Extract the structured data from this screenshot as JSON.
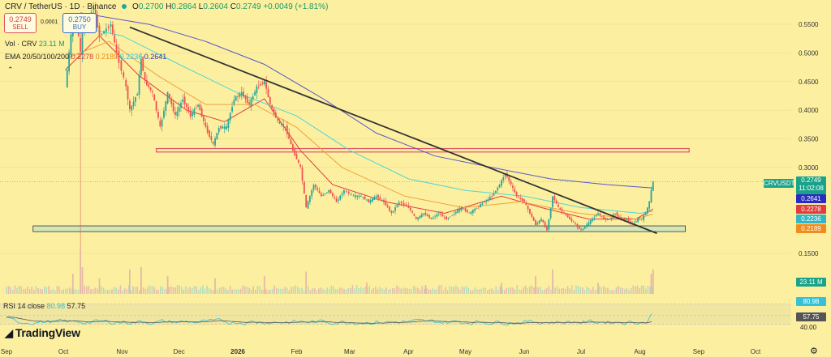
{
  "header": {
    "symbol": "CRV / TetherUS · 1D · Binance",
    "ohlc_open_label": "O",
    "ohlc_open": "0.2700",
    "ohlc_high_label": "H",
    "ohlc_high": "0.2864",
    "ohlc_low_label": "L",
    "ohlc_low": "0.2604",
    "ohlc_close_label": "C",
    "ohlc_close": "0.2749",
    "ohlc_change": "+0.0049 (+1.81%)",
    "sell_price": "0.2749",
    "sell_label": "SELL",
    "spread": "0.0001",
    "buy_price": "0.2750",
    "buy_label": "BUY",
    "vol_label": "Vol · CRV",
    "vol_value": "23.11 M",
    "ema_label": "EMA 20/50/100/200",
    "ema20": "0.2278",
    "ema50": "0.2189",
    "ema100": "0.2236",
    "ema200": "0.2641",
    "collapse_icon": "chevron-up-icon"
  },
  "right_axis": {
    "ticks": [
      "0.5500",
      "0.5000",
      "0.4500",
      "0.4000",
      "0.3500",
      "0.3000",
      "0.1500"
    ],
    "symbol_tag": "CRVUSDT",
    "price_tag": "0.2749",
    "countdown": "11:02:08",
    "ema200_tag": "0.2641",
    "ema20_tag": "0.2278",
    "ema100_tag": "0.2236",
    "ema50_tag": "0.2189",
    "vol_tag": "23.11 M",
    "rsi_tag": "80.98",
    "rsi_ma_tag": "57.75",
    "rsi_40": "40.00"
  },
  "rsi": {
    "label": "RSI 14 close",
    "value": "80.98",
    "ma": "57.75"
  },
  "time_axis": [
    "Sep",
    "Oct",
    "Nov",
    "Dec",
    "2026",
    "Feb",
    "Mar",
    "Apr",
    "May",
    "Jun",
    "Jul",
    "Aug",
    "Sep",
    "Oct"
  ],
  "brand": "TradingView",
  "brand_icon": "tradingview-logo-icon",
  "settings_icon": "gear-icon",
  "colors": {
    "background": "#fcf0a0",
    "up": "#26a69a",
    "down": "#ef5350",
    "ema20": "#e33c3c",
    "ema50": "#f0a040",
    "ema100": "#52d4d4",
    "ema200": "#5856c8",
    "trendline": "#333333",
    "resistance_zone": "#e0506a",
    "support_zone": "#5a9aa0"
  },
  "chart_data": {
    "type": "candlestick",
    "symbol": "CRVUSDT",
    "timeframe": "1D",
    "price_ylim": [
      0.13,
      0.57
    ],
    "last": {
      "open": 0.27,
      "high": 0.2864,
      "low": 0.2604,
      "close": 0.2749
    },
    "candle_path": [
      [
        "2025-10-02",
        0.44
      ],
      [
        "2025-10-06",
        0.56
      ],
      [
        "2025-10-09",
        0.53
      ],
      [
        "2025-10-10",
        0.5
      ],
      [
        "2025-10-11",
        0.54
      ],
      [
        "2025-10-17",
        0.58
      ],
      [
        "2025-10-20",
        0.53
      ],
      [
        "2025-10-26",
        0.55
      ],
      [
        "2025-10-29",
        0.5
      ],
      [
        "2025-11-03",
        0.44
      ],
      [
        "2025-11-05",
        0.4
      ],
      [
        "2025-11-09",
        0.43
      ],
      [
        "2025-11-11",
        0.49
      ],
      [
        "2025-11-13",
        0.45
      ],
      [
        "2025-11-17",
        0.43
      ],
      [
        "2025-11-21",
        0.37
      ],
      [
        "2025-11-25",
        0.43
      ],
      [
        "2025-11-29",
        0.39
      ],
      [
        "2025-12-03",
        0.42
      ],
      [
        "2025-12-07",
        0.39
      ],
      [
        "2025-12-11",
        0.41
      ],
      [
        "2025-12-15",
        0.37
      ],
      [
        "2025-12-19",
        0.34
      ],
      [
        "2025-12-22",
        0.37
      ],
      [
        "2025-12-26",
        0.37
      ],
      [
        "2025-12-30",
        0.42
      ],
      [
        "2026-01-03",
        0.43
      ],
      [
        "2026-01-07",
        0.41
      ],
      [
        "2026-01-11",
        0.44
      ],
      [
        "2026-01-15",
        0.45
      ],
      [
        "2026-01-18",
        0.41
      ],
      [
        "2026-01-22",
        0.38
      ],
      [
        "2026-01-26",
        0.37
      ],
      [
        "2026-01-30",
        0.33
      ],
      [
        "2026-02-03",
        0.3
      ],
      [
        "2026-02-06",
        0.23
      ],
      [
        "2026-02-10",
        0.27
      ],
      [
        "2026-02-14",
        0.25
      ],
      [
        "2026-02-18",
        0.26
      ],
      [
        "2026-02-22",
        0.24
      ],
      [
        "2026-02-26",
        0.26
      ],
      [
        "2026-03-03",
        0.25
      ],
      [
        "2026-03-07",
        0.25
      ],
      [
        "2026-03-11",
        0.24
      ],
      [
        "2026-03-15",
        0.25
      ],
      [
        "2026-03-19",
        0.24
      ],
      [
        "2026-03-23",
        0.22
      ],
      [
        "2026-03-27",
        0.24
      ],
      [
        "2026-04-01",
        0.23
      ],
      [
        "2026-04-05",
        0.21
      ],
      [
        "2026-04-09",
        0.22
      ],
      [
        "2026-04-13",
        0.21
      ],
      [
        "2026-04-17",
        0.22
      ],
      [
        "2026-04-21",
        0.21
      ],
      [
        "2026-04-25",
        0.22
      ],
      [
        "2026-04-29",
        0.23
      ],
      [
        "2026-05-03",
        0.22
      ],
      [
        "2026-05-07",
        0.23
      ],
      [
        "2026-05-11",
        0.24
      ],
      [
        "2026-05-15",
        0.25
      ],
      [
        "2026-05-19",
        0.27
      ],
      [
        "2026-05-22",
        0.29
      ],
      [
        "2026-05-25",
        0.27
      ],
      [
        "2026-05-28",
        0.25
      ],
      [
        "2026-06-01",
        0.24
      ],
      [
        "2026-06-04",
        0.22
      ],
      [
        "2026-06-07",
        0.2
      ],
      [
        "2026-06-10",
        0.21
      ],
      [
        "2026-06-13",
        0.19
      ],
      [
        "2026-06-16",
        0.25
      ],
      [
        "2026-06-19",
        0.23
      ],
      [
        "2026-06-22",
        0.22
      ],
      [
        "2026-06-25",
        0.21
      ],
      [
        "2026-06-28",
        0.2
      ],
      [
        "2026-07-01",
        0.19
      ],
      [
        "2026-07-04",
        0.2
      ],
      [
        "2026-07-07",
        0.21
      ],
      [
        "2026-07-10",
        0.22
      ],
      [
        "2026-07-13",
        0.21
      ],
      [
        "2026-07-16",
        0.21
      ],
      [
        "2026-07-19",
        0.22
      ],
      [
        "2026-07-22",
        0.21
      ],
      [
        "2026-07-25",
        0.21
      ],
      [
        "2026-07-28",
        0.2
      ],
      [
        "2026-07-31",
        0.21
      ],
      [
        "2026-08-02",
        0.21
      ],
      [
        "2026-08-04",
        0.22
      ],
      [
        "2026-08-06",
        0.24
      ],
      [
        "2026-08-07",
        0.26
      ],
      [
        "2026-08-08",
        0.275
      ]
    ],
    "emas": [
      {
        "name": "EMA 20",
        "value": 0.2278,
        "points": [
          [
            "2025-10-02",
            0.47
          ],
          [
            "2025-10-20",
            0.53
          ],
          [
            "2025-11-10",
            0.46
          ],
          [
            "2025-12-05",
            0.4
          ],
          [
            "2025-12-25",
            0.38
          ],
          [
            "2026-01-15",
            0.42
          ],
          [
            "2026-02-03",
            0.33
          ],
          [
            "2026-02-20",
            0.27
          ],
          [
            "2026-03-20",
            0.24
          ],
          [
            "2026-04-20",
            0.22
          ],
          [
            "2026-05-20",
            0.25
          ],
          [
            "2026-06-10",
            0.23
          ],
          [
            "2026-07-05",
            0.21
          ],
          [
            "2026-07-30",
            0.21
          ],
          [
            "2026-08-08",
            0.2278
          ]
        ]
      },
      {
        "name": "EMA 50",
        "value": 0.2189,
        "points": [
          [
            "2025-10-02",
            0.49
          ],
          [
            "2025-10-25",
            0.52
          ],
          [
            "2025-11-20",
            0.46
          ],
          [
            "2025-12-15",
            0.41
          ],
          [
            "2026-01-10",
            0.41
          ],
          [
            "2026-02-01",
            0.37
          ],
          [
            "2026-02-25",
            0.3
          ],
          [
            "2026-03-30",
            0.25
          ],
          [
            "2026-04-30",
            0.23
          ],
          [
            "2026-05-30",
            0.24
          ],
          [
            "2026-06-30",
            0.22
          ],
          [
            "2026-07-30",
            0.21
          ],
          [
            "2026-08-08",
            0.2189
          ]
        ]
      },
      {
        "name": "EMA 100",
        "value": 0.2236,
        "points": [
          [
            "2025-10-02",
            0.55
          ],
          [
            "2025-11-01",
            0.53
          ],
          [
            "2025-12-01",
            0.48
          ],
          [
            "2026-01-01",
            0.43
          ],
          [
            "2026-02-01",
            0.39
          ],
          [
            "2026-03-01",
            0.33
          ],
          [
            "2026-04-01",
            0.28
          ],
          [
            "2026-05-01",
            0.26
          ],
          [
            "2026-06-01",
            0.25
          ],
          [
            "2026-07-01",
            0.23
          ],
          [
            "2026-08-01",
            0.22
          ],
          [
            "2026-08-08",
            0.2236
          ]
        ]
      },
      {
        "name": "EMA 200",
        "value": 0.2641,
        "points": [
          [
            "2025-10-10",
            0.57
          ],
          [
            "2025-11-15",
            0.55
          ],
          [
            "2025-12-15",
            0.52
          ],
          [
            "2026-01-15",
            0.48
          ],
          [
            "2026-02-15",
            0.42
          ],
          [
            "2026-03-15",
            0.36
          ],
          [
            "2026-04-15",
            0.32
          ],
          [
            "2026-05-15",
            0.3
          ],
          [
            "2026-06-15",
            0.28
          ],
          [
            "2026-07-15",
            0.27
          ],
          [
            "2026-08-08",
            0.2641
          ]
        ]
      }
    ],
    "trendline": {
      "from": [
        "2025-11-05",
        0.545
      ],
      "to": [
        "2026-08-10",
        0.185
      ]
    },
    "resistance_zone": {
      "from": "2025-11-19",
      "to": "2026-08-27",
      "low": 0.327,
      "high": 0.333
    },
    "support_zone": {
      "from": "2025-09-15",
      "to": "2026-08-25",
      "low": 0.188,
      "high": 0.198
    },
    "last_price": 0.2749,
    "volume": {
      "last": "23.11 M",
      "bars": [
        [
          "2025-10-06",
          0.45
        ],
        [
          "2025-10-10",
          1.0
        ],
        [
          "2025-10-11",
          0.6
        ],
        [
          "2025-10-20",
          0.35
        ],
        [
          "2025-11-05",
          0.55
        ],
        [
          "2025-11-11",
          0.6
        ],
        [
          "2025-11-25",
          0.4
        ],
        [
          "2025-12-20",
          0.35
        ],
        [
          "2026-01-15",
          0.4
        ],
        [
          "2026-02-06",
          0.5
        ],
        [
          "2026-03-10",
          0.25
        ],
        [
          "2026-04-10",
          0.2
        ],
        [
          "2026-05-20",
          0.25
        ],
        [
          "2026-06-07",
          0.4
        ],
        [
          "2026-06-16",
          0.55
        ],
        [
          "2026-07-10",
          0.25
        ],
        [
          "2026-08-07",
          0.45
        ],
        [
          "2026-08-08",
          0.55
        ]
      ]
    },
    "rsi": {
      "period": 14,
      "value": 80.98,
      "ma": 57.75,
      "ylim": [
        20,
        90
      ],
      "bands": [
        40,
        57.75,
        80.98
      ]
    },
    "x_ticks": [
      "Sep",
      "Oct",
      "Nov",
      "Dec",
      "2026",
      "Feb",
      "Mar",
      "Apr",
      "May",
      "Jun",
      "Jul",
      "Aug",
      "Sep",
      "Oct"
    ]
  }
}
